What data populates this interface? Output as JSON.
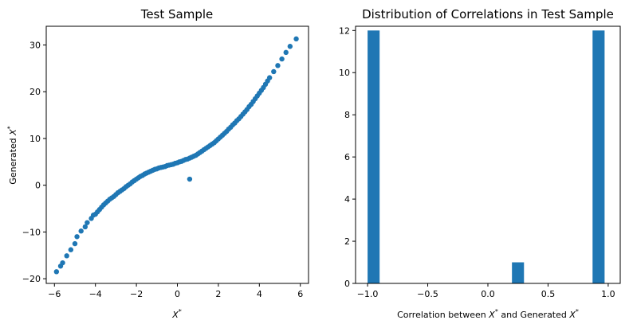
{
  "chart_data": [
    {
      "type": "scatter",
      "title": "Test Sample",
      "xlabel": "X*",
      "ylabel": "Generated X*",
      "xlim": [
        -6.4,
        6.4
      ],
      "ylim": [
        -21,
        34
      ],
      "xticks": [
        -6,
        -4,
        -2,
        0,
        2,
        4,
        6
      ],
      "yticks": [
        -20,
        -10,
        0,
        10,
        20,
        30
      ],
      "xtick_labels": [
        "−6",
        "−4",
        "−2",
        "0",
        "2",
        "4",
        "6"
      ],
      "ytick_labels": [
        "−20",
        "−10",
        "0",
        "10",
        "20",
        "30"
      ],
      "color": "#1f77b4",
      "grid": false,
      "x": [
        -5.9,
        -5.7,
        -5.6,
        -5.4,
        -5.2,
        -5.0,
        -4.9,
        -4.7,
        -4.5,
        -4.4,
        -4.2,
        -4.1,
        -4.0,
        -3.9,
        -3.8,
        -3.7,
        -3.6,
        -3.5,
        -3.4,
        -3.3,
        -3.2,
        -3.1,
        -3.0,
        -2.9,
        -2.8,
        -2.7,
        -2.6,
        -2.5,
        -2.4,
        -2.3,
        -2.2,
        -2.1,
        -2.0,
        -1.9,
        -1.8,
        -1.7,
        -1.6,
        -1.5,
        -1.4,
        -1.3,
        -1.2,
        -1.1,
        -1.0,
        -0.9,
        -0.8,
        -0.7,
        -0.6,
        -0.5,
        -0.4,
        -0.3,
        -0.2,
        -0.1,
        0.0,
        0.1,
        0.2,
        0.3,
        0.4,
        0.5,
        0.6,
        0.7,
        0.8,
        0.9,
        1.0,
        1.1,
        1.2,
        1.3,
        1.4,
        1.5,
        1.6,
        1.7,
        1.8,
        1.9,
        2.0,
        2.1,
        2.2,
        2.3,
        2.4,
        2.5,
        2.6,
        2.7,
        2.8,
        2.9,
        3.0,
        3.1,
        3.2,
        3.3,
        3.4,
        3.5,
        3.6,
        3.7,
        3.8,
        3.9,
        4.0,
        4.1,
        4.2,
        4.3,
        4.4,
        4.5,
        4.7,
        4.9,
        5.1,
        5.3,
        5.5,
        5.8,
        0.6
      ],
      "y": [
        -18.5,
        -17.3,
        -16.6,
        -15.1,
        -13.8,
        -12.5,
        -11.0,
        -9.8,
        -8.9,
        -8.0,
        -7.1,
        -6.4,
        -6.2,
        -5.7,
        -5.2,
        -4.7,
        -4.2,
        -3.8,
        -3.4,
        -3.0,
        -2.7,
        -2.4,
        -2.0,
        -1.6,
        -1.3,
        -1.0,
        -0.7,
        -0.3,
        0.0,
        0.3,
        0.7,
        1.0,
        1.3,
        1.6,
        1.9,
        2.1,
        2.4,
        2.6,
        2.8,
        3.0,
        3.2,
        3.4,
        3.5,
        3.7,
        3.8,
        3.9,
        4.0,
        4.2,
        4.3,
        4.4,
        4.5,
        4.7,
        4.8,
        5.0,
        5.1,
        5.3,
        5.5,
        5.6,
        5.8,
        6.0,
        6.2,
        6.4,
        6.7,
        7.0,
        7.3,
        7.6,
        7.9,
        8.2,
        8.5,
        8.8,
        9.1,
        9.5,
        9.9,
        10.3,
        10.7,
        11.1,
        11.5,
        12.0,
        12.4,
        12.9,
        13.3,
        13.8,
        14.2,
        14.7,
        15.2,
        15.7,
        16.2,
        16.8,
        17.3,
        17.9,
        18.5,
        19.1,
        19.7,
        20.3,
        20.9,
        21.6,
        22.3,
        23.0,
        24.3,
        25.6,
        27.0,
        28.4,
        29.7,
        31.3,
        1.3
      ]
    },
    {
      "type": "bar",
      "title": "Distribution of Correlations in Test Sample",
      "xlabel": "Correlation between X* and Generated X*",
      "ylabel": "",
      "xlim": [
        -1.1,
        1.1
      ],
      "ylim": [
        0,
        12.2
      ],
      "xticks": [
        -1.0,
        -0.5,
        0.0,
        0.5,
        1.0
      ],
      "yticks": [
        0,
        2,
        4,
        6,
        8,
        10,
        12
      ],
      "xtick_labels": [
        "−1.0",
        "−0.5",
        "0.0",
        "0.5",
        "1.0"
      ],
      "ytick_labels": [
        "0",
        "2",
        "4",
        "6",
        "8",
        "10",
        "12"
      ],
      "color": "#1f77b4",
      "grid": false,
      "bins": [
        {
          "x0": -1.0,
          "x1": -0.9,
          "count": 12
        },
        {
          "x0": 0.2,
          "x1": 0.3,
          "count": 1
        },
        {
          "x0": 0.87,
          "x1": 0.97,
          "count": 12
        }
      ]
    }
  ]
}
